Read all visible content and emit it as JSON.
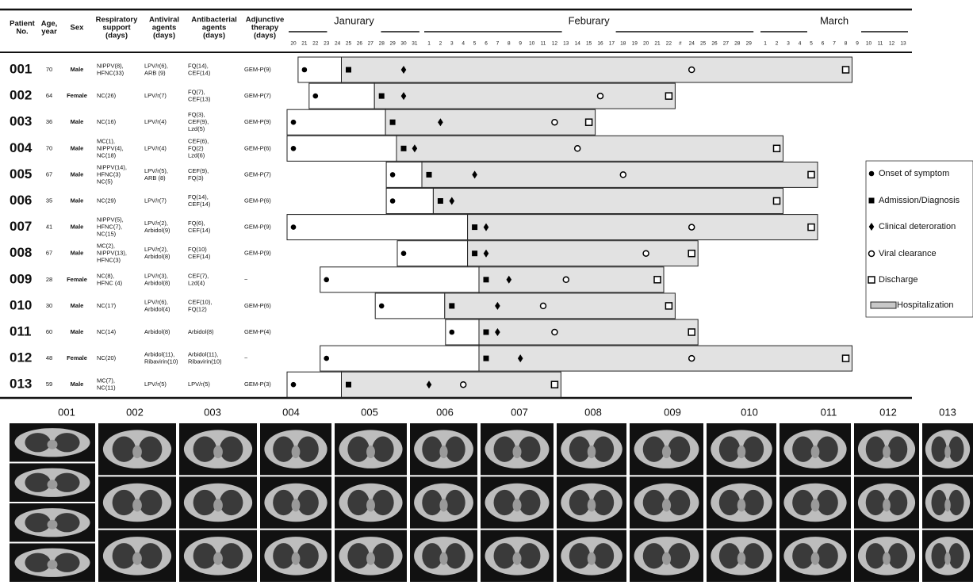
{
  "header": {
    "columns": [
      [
        "Patient",
        "No."
      ],
      [
        "Age,",
        "year"
      ],
      [
        "Sex"
      ],
      [
        "Respiratory",
        "support",
        "(days)"
      ],
      [
        "Antiviral",
        "agents",
        "(days)"
      ],
      [
        "Antibacterial",
        "agents",
        "(days)"
      ],
      [
        "Adjunctive",
        "therapy",
        "(days)"
      ]
    ],
    "months": [
      {
        "name": "Janurary",
        "days": [
          20,
          21,
          22,
          23,
          24,
          25,
          26,
          27,
          28,
          29,
          30,
          31
        ]
      },
      {
        "name": "Feburary",
        "days": [
          1,
          2,
          3,
          4,
          5,
          6,
          7,
          8,
          9,
          10,
          11,
          12,
          13,
          14,
          15,
          16,
          17,
          18,
          19,
          20,
          21,
          22,
          "#",
          24,
          25,
          26,
          27,
          28,
          29
        ]
      },
      {
        "name": "March",
        "days": [
          1,
          2,
          3,
          4,
          5,
          6,
          7,
          8,
          9,
          10,
          11,
          12,
          13
        ]
      }
    ]
  },
  "patients": [
    {
      "no": "001",
      "age": 70,
      "sex": "Male",
      "respiratory": [
        "NIPPV(8),",
        "HFNC(33)"
      ],
      "antiviral": [
        "LPV/r(6),",
        "ARB (9)"
      ],
      "antibacterial": [
        "FQ(14),",
        "CEF(14)"
      ],
      "adjunctive": "GEM-P(9)",
      "events": {
        "onset": {
          "month": 0,
          "day": 21
        },
        "admission": {
          "month": 0,
          "day": 25
        },
        "deterioration": {
          "month": 0,
          "day": 30
        },
        "viral_clearance": {
          "month": 1,
          "day": 24
        },
        "discharge": {
          "month": 2,
          "day": 8
        }
      }
    },
    {
      "no": "002",
      "age": 64,
      "sex": "Female",
      "respiratory": [
        "NC(26)"
      ],
      "antiviral": [
        "LPV/r(7)"
      ],
      "antibacterial": [
        "FQ(7),",
        "CEF(13)"
      ],
      "adjunctive": "GEM-P(7)",
      "events": {
        "onset": {
          "month": 0,
          "day": 22
        },
        "admission": {
          "month": 0,
          "day": 28
        },
        "deterioration": {
          "month": 0,
          "day": 30
        },
        "viral_clearance": {
          "month": 1,
          "day": 16
        },
        "discharge": {
          "month": 1,
          "day": 22
        }
      }
    },
    {
      "no": "003",
      "age": 36,
      "sex": "Male",
      "respiratory": [
        "NC(16)"
      ],
      "antiviral": [
        "LPV/r(4)"
      ],
      "antibacterial": [
        "FQ(3),",
        "CEF(9),",
        "Lzd(5)"
      ],
      "adjunctive": "GEM-P(9)",
      "events": {
        "onset": {
          "month": 0,
          "day": 20
        },
        "admission": {
          "month": 0,
          "day": 29
        },
        "deterioration": {
          "month": 1,
          "day": 2
        },
        "viral_clearance": {
          "month": 1,
          "day": 12
        },
        "discharge": {
          "month": 1,
          "day": 15
        }
      }
    },
    {
      "no": "004",
      "age": 70,
      "sex": "Male",
      "respiratory": [
        "MC(1),",
        "NIPPV(4),",
        "NC(18)"
      ],
      "antiviral": [
        "LPV/r(4)"
      ],
      "antibacterial": [
        "CEF(6),",
        "FQ(2)",
        "Lzd(6)"
      ],
      "adjunctive": "GEM-P(6)",
      "events": {
        "onset": {
          "month": 0,
          "day": 20
        },
        "admission": {
          "month": 0,
          "day": 30
        },
        "deterioration": {
          "month": 0,
          "day": 31
        },
        "viral_clearance": {
          "month": 1,
          "day": 14
        },
        "discharge": {
          "month": 2,
          "day": 2
        }
      }
    },
    {
      "no": "005",
      "age": 67,
      "sex": "Male",
      "respiratory": [
        "NIPPV(14),",
        "HFNC(3)",
        "NC(5)"
      ],
      "antiviral": [
        "LPV/r(5),",
        "ARB (8)"
      ],
      "antibacterial": [
        "CEF(9),",
        "FQ(3)"
      ],
      "adjunctive": "GEM-P(7)",
      "events": {
        "onset": {
          "month": 0,
          "day": 29
        },
        "admission": {
          "month": 1,
          "day": 1
        },
        "deterioration": {
          "month": 1,
          "day": 5
        },
        "viral_clearance": {
          "month": 1,
          "day": 18
        },
        "discharge": {
          "month": 2,
          "day": 5
        }
      }
    },
    {
      "no": "006",
      "age": 35,
      "sex": "Male",
      "respiratory": [
        "NC(29)"
      ],
      "antiviral": [
        "LPV/r(7)"
      ],
      "antibacterial": [
        "FQ(14),",
        "CEF(14)"
      ],
      "adjunctive": "GEM-P(6)",
      "events": {
        "onset": {
          "month": 0,
          "day": 29
        },
        "admission": {
          "month": 1,
          "day": 2
        },
        "deterioration": {
          "month": 1,
          "day": 3
        },
        "viral_clearance": null,
        "discharge": {
          "month": 2,
          "day": 2
        }
      }
    },
    {
      "no": "007",
      "age": 41,
      "sex": "Male",
      "respiratory": [
        "NIPPV(5),",
        "HFNC(7),",
        "NC(15)"
      ],
      "antiviral": [
        "LPV/r(2),",
        "Arbidol(9)"
      ],
      "antibacterial": [
        "FQ(6),",
        "CEF(14)"
      ],
      "adjunctive": "GEM-P(9)",
      "events": {
        "onset": {
          "month": 0,
          "day": 20
        },
        "admission": {
          "month": 1,
          "day": 5
        },
        "deterioration": {
          "month": 1,
          "day": 6
        },
        "viral_clearance": {
          "month": 1,
          "day": 24
        },
        "discharge": {
          "month": 2,
          "day": 5
        }
      }
    },
    {
      "no": "008",
      "age": 67,
      "sex": "Male",
      "respiratory": [
        "MC(2),",
        "NIPPV(13),",
        "HFNC(3)"
      ],
      "antiviral": [
        "LPV/r(2),",
        "Arbidol(8)"
      ],
      "antibacterial": [
        "FQ(10)",
        "CEF(14)"
      ],
      "adjunctive": "GEM-P(9)",
      "events": {
        "onset": {
          "month": 0,
          "day": 30
        },
        "admission": {
          "month": 1,
          "day": 5
        },
        "deterioration": {
          "month": 1,
          "day": 6
        },
        "viral_clearance": {
          "month": 1,
          "day": 20
        },
        "discharge": {
          "month": 1,
          "day": 24
        }
      }
    },
    {
      "no": "009",
      "age": 28,
      "sex": "Female",
      "respiratory": [
        "NC(8),",
        "HFNC (4)"
      ],
      "antiviral": [
        "LPV/r(3),",
        "Arbidol(8)"
      ],
      "antibacterial": [
        "CEF(7),",
        "Lzd(4)"
      ],
      "adjunctive": "~",
      "events": {
        "onset": {
          "month": 0,
          "day": 23
        },
        "admission": {
          "month": 1,
          "day": 6
        },
        "deterioration": {
          "month": 1,
          "day": 8
        },
        "viral_clearance": {
          "month": 1,
          "day": 13
        },
        "discharge": {
          "month": 1,
          "day": 21
        }
      }
    },
    {
      "no": "010",
      "age": 30,
      "sex": "Male",
      "respiratory": [
        "NC(17)"
      ],
      "antiviral": [
        "LPV/r(6),",
        "Arbidol(4)"
      ],
      "antibacterial": [
        "CEF(10),",
        "FQ(12)"
      ],
      "adjunctive": "GEM-P(6)",
      "events": {
        "onset": {
          "month": 0,
          "day": 28
        },
        "admission": {
          "month": 1,
          "day": 3
        },
        "deterioration": {
          "month": 1,
          "day": 7
        },
        "viral_clearance": {
          "month": 1,
          "day": 11
        },
        "discharge": {
          "month": 1,
          "day": 22
        }
      }
    },
    {
      "no": "011",
      "age": 60,
      "sex": "Male",
      "respiratory": [
        "NC(14)"
      ],
      "antiviral": [
        "Arbidol(8)"
      ],
      "antibacterial": [
        "Arbidol(8)"
      ],
      "adjunctive": "GEM-P(4)",
      "events": {
        "onset": {
          "month": 1,
          "day": 3
        },
        "admission": {
          "month": 1,
          "day": 6
        },
        "deterioration": {
          "month": 1,
          "day": 7
        },
        "viral_clearance": {
          "month": 1,
          "day": 12
        },
        "discharge": {
          "month": 1,
          "day": 24
        }
      }
    },
    {
      "no": "012",
      "age": 48,
      "sex": "Female",
      "respiratory": [
        "NC(20)"
      ],
      "antiviral": [
        "Arbidol(11),",
        "Ribavirin(10)"
      ],
      "antibacterial": [
        "Arbidol(11),",
        "Ribavirin(10)"
      ],
      "adjunctive": "~",
      "events": {
        "onset": {
          "month": 0,
          "day": 23
        },
        "admission": {
          "month": 1,
          "day": 6
        },
        "deterioration": {
          "month": 1,
          "day": 9
        },
        "viral_clearance": {
          "month": 1,
          "day": 24
        },
        "discharge": {
          "month": 2,
          "day": 8
        }
      }
    },
    {
      "no": "013",
      "age": 59,
      "sex": "Male",
      "respiratory": [
        "MC(7),",
        "NC(11)"
      ],
      "antiviral": [
        "LPV/r(5)"
      ],
      "antibacterial": [
        "LPV/r(5)"
      ],
      "adjunctive": "GEM-P(3)",
      "events": {
        "onset": {
          "month": 0,
          "day": 20
        },
        "admission": {
          "month": 0,
          "day": 25
        },
        "deterioration": {
          "month": 1,
          "day": 1
        },
        "viral_clearance": {
          "month": 1,
          "day": 4
        },
        "discharge": {
          "month": 1,
          "day": 12
        }
      }
    }
  ],
  "legend": {
    "onset": "Onset of symptom",
    "admission": "Admission/Diagnosis",
    "deterioration": "Clinical deteroration",
    "viral_clearance": "Viral clearance",
    "discharge": "Discharge",
    "hospitalization": "Hospitalization"
  },
  "ct_labels": [
    "001",
    "002",
    "003",
    "004",
    "005",
    "006",
    "007",
    "008",
    "009",
    "010",
    "011",
    "012",
    "013"
  ]
}
